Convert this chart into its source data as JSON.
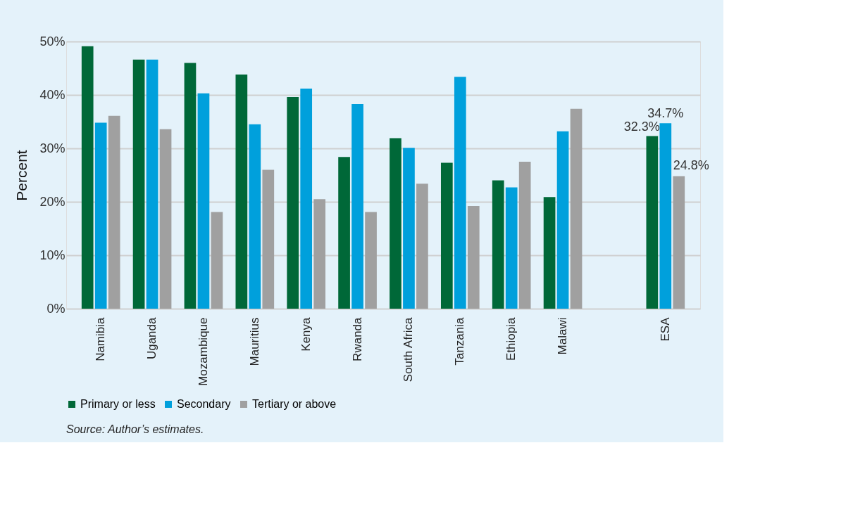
{
  "chart_data": {
    "type": "bar",
    "ylabel": "Percent",
    "categories": [
      "Namibia",
      "Uganda",
      "Mozambique",
      "Mauritius",
      "Kenya",
      "Rwanda",
      "South Africa",
      "Tanzania",
      "Ethiopia",
      "Malawi",
      null,
      "ESA"
    ],
    "series": [
      {
        "name": "Primary or less",
        "color": "#006838",
        "values": [
          49.1,
          46.6,
          46.0,
          43.8,
          39.6,
          28.4,
          31.9,
          27.3,
          24.0,
          20.9,
          null,
          32.3
        ],
        "value_labels": [
          null,
          null,
          null,
          null,
          null,
          null,
          null,
          null,
          null,
          null,
          null,
          "32.3%"
        ]
      },
      {
        "name": "Secondary",
        "color": "#00a0dc",
        "values": [
          34.8,
          46.6,
          40.3,
          34.5,
          41.2,
          38.3,
          30.1,
          43.4,
          22.7,
          33.2,
          null,
          34.7
        ],
        "value_labels": [
          null,
          null,
          null,
          null,
          null,
          null,
          null,
          null,
          null,
          null,
          null,
          "34.7%"
        ]
      },
      {
        "name": "Tertiary or above",
        "color": "#a0a0a0",
        "values": [
          36.1,
          33.6,
          18.1,
          26.0,
          20.5,
          18.1,
          23.4,
          19.2,
          27.5,
          37.4,
          null,
          24.8
        ],
        "value_labels": [
          null,
          null,
          null,
          null,
          null,
          null,
          null,
          null,
          null,
          null,
          null,
          "24.8%"
        ]
      }
    ],
    "ylim": [
      0,
      50
    ],
    "yticks": [
      {
        "value": 0,
        "label": "0%"
      },
      {
        "value": 10,
        "label": "10%"
      },
      {
        "value": 20,
        "label": "20%"
      },
      {
        "value": 30,
        "label": "30%"
      },
      {
        "value": 40,
        "label": "40%"
      },
      {
        "value": 50,
        "label": "50%"
      }
    ],
    "grid": "y",
    "legend": "bottom",
    "annotations": [
      "Source: Author’s estimates."
    ]
  }
}
